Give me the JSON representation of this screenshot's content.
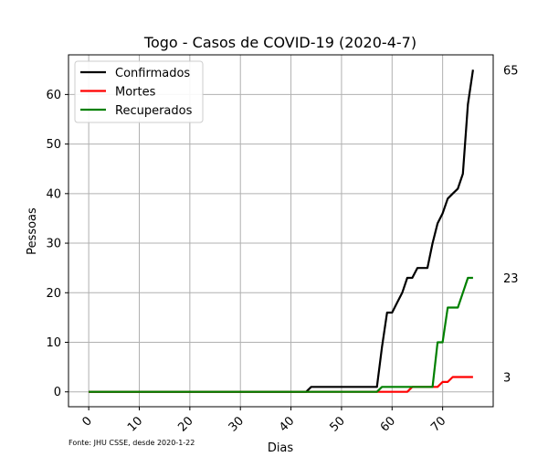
{
  "chart_data": {
    "type": "line",
    "title": "Togo - Casos de COVID-19 (2020-4-7)",
    "xlabel": "Dias",
    "ylabel": "Pessoas",
    "source_note": "Fonte: JHU CSSE, desde 2020-1-22",
    "xlim": [
      -4,
      80
    ],
    "ylim": [
      -3,
      68
    ],
    "xticks": [
      0,
      10,
      20,
      30,
      40,
      50,
      60,
      70
    ],
    "yticks": [
      0,
      10,
      20,
      30,
      40,
      50,
      60
    ],
    "grid": true,
    "legend_position": "top-left",
    "end_labels": [
      "65",
      "23",
      "3"
    ],
    "series": [
      {
        "name": "Confirmados",
        "color": "#000000",
        "points": [
          [
            0,
            0
          ],
          [
            42,
            0
          ],
          [
            43,
            0
          ],
          [
            44,
            1
          ],
          [
            57,
            1
          ],
          [
            58,
            9
          ],
          [
            59,
            16
          ],
          [
            60,
            16
          ],
          [
            61,
            18
          ],
          [
            62,
            20
          ],
          [
            63,
            23
          ],
          [
            64,
            23
          ],
          [
            65,
            25
          ],
          [
            66,
            25
          ],
          [
            67,
            25
          ],
          [
            68,
            30
          ],
          [
            69,
            34
          ],
          [
            70,
            36
          ],
          [
            71,
            39
          ],
          [
            72,
            40
          ],
          [
            73,
            41
          ],
          [
            74,
            44
          ],
          [
            75,
            58
          ],
          [
            76,
            65
          ]
        ]
      },
      {
        "name": "Mortes",
        "color": "#ff0000",
        "points": [
          [
            0,
            0
          ],
          [
            63,
            0
          ],
          [
            64,
            1
          ],
          [
            68,
            1
          ],
          [
            69,
            1
          ],
          [
            70,
            2
          ],
          [
            71,
            2
          ],
          [
            72,
            3
          ],
          [
            73,
            3
          ],
          [
            76,
            3
          ]
        ]
      },
      {
        "name": "Recuperados",
        "color": "#008000",
        "points": [
          [
            0,
            0
          ],
          [
            57,
            0
          ],
          [
            58,
            1
          ],
          [
            68,
            1
          ],
          [
            69,
            10
          ],
          [
            70,
            10
          ],
          [
            71,
            17
          ],
          [
            73,
            17
          ],
          [
            74,
            20
          ],
          [
            75,
            23
          ],
          [
            76,
            23
          ]
        ]
      }
    ]
  }
}
